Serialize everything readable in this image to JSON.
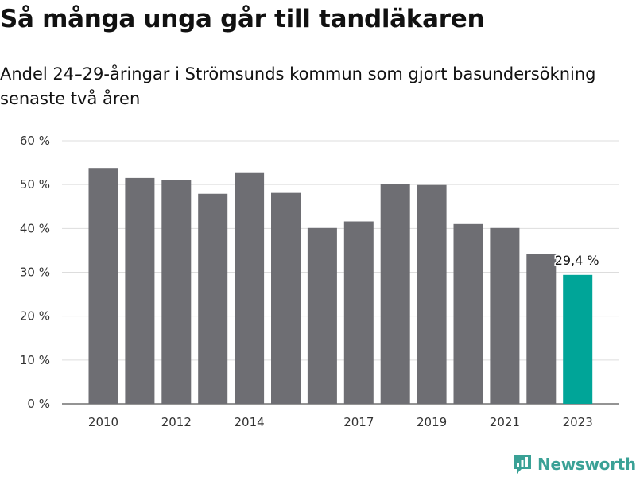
{
  "chart_data": {
    "type": "bar",
    "title": "Så många unga går till tandläkaren",
    "subtitle": "Andel 24–29-åringar i Strömsunds kommun som gjort basundersökning senaste två åren",
    "categories": [
      "2010",
      "2011",
      "2012",
      "2013",
      "2014",
      "2015",
      "2016",
      "2017",
      "2018",
      "2019",
      "2020",
      "2021",
      "2022",
      "2023"
    ],
    "x_tick_labels": [
      "2010",
      "",
      "2012",
      "",
      "2014",
      "",
      "",
      "2017",
      "",
      "2019",
      "",
      "2021",
      "",
      "2023"
    ],
    "values": [
      53.8,
      51.5,
      51.0,
      47.9,
      52.8,
      48.1,
      40.1,
      41.6,
      50.1,
      49.9,
      41.0,
      40.1,
      34.2,
      29.4
    ],
    "ylim": [
      0,
      60
    ],
    "y_ticks": [
      0,
      10,
      20,
      30,
      40,
      50,
      60
    ],
    "y_tick_labels": [
      "0 %",
      "10 %",
      "20 %",
      "30 %",
      "40 %",
      "50 %",
      "60 %"
    ],
    "bar_color": "#6e6e73",
    "highlight_color": "#00a598",
    "highlight_index": 13,
    "highlight_label": "29,4 %",
    "grid": true,
    "xlabel": "",
    "ylabel": ""
  },
  "branding": {
    "logo_text": "Newsworthy",
    "logo_color": "#3aa196"
  }
}
